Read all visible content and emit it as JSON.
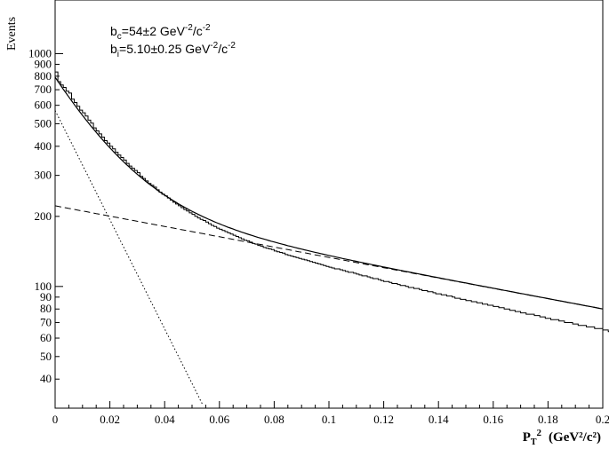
{
  "chart_data": {
    "type": "line",
    "ylabel": "Events",
    "xlabel_main": "P",
    "xlabel_sub": "T",
    "xlabel_sup": "2",
    "xlabel_units": "(GeV²/c²)",
    "ylog": true,
    "xlim": [
      0,
      0.2
    ],
    "ylim": [
      30,
      1700
    ],
    "x_ticks": [
      0,
      0.02,
      0.04,
      0.06,
      0.08,
      0.1,
      0.12,
      0.14,
      0.16,
      0.18,
      0.2
    ],
    "x_tick_labels": [
      "0",
      "0.02",
      "0.04",
      "0.06",
      "0.08",
      "0.1",
      "0.12",
      "0.14",
      "0.16",
      "0.18",
      "0.2"
    ],
    "y_ticks": [
      40,
      50,
      60,
      70,
      80,
      90,
      100,
      200,
      300,
      400,
      500,
      600,
      700,
      800,
      900,
      1000
    ],
    "y_tick_labels": [
      "40",
      "50",
      "60",
      "70",
      "80",
      "90",
      "100",
      "200",
      "300",
      "400",
      "500",
      "600",
      "700",
      "800",
      "900",
      "1000"
    ],
    "annotations": [
      {
        "prefix": "b",
        "sub": "c",
        "text": "=54±2 GeV",
        "sup1": "-2",
        "mid": "/c",
        "sup2": "-2"
      },
      {
        "prefix": "b",
        "sub": "i",
        "text": "=5.10±0.25  GeV",
        "sup1": "-2",
        "mid": "/c",
        "sup2": "-2"
      }
    ],
    "fit_components": {
      "coherent": {
        "amplitude": 570,
        "slope": 54,
        "style": "dotted"
      },
      "incoherent": {
        "amplitude": 222,
        "slope": 5.1,
        "style": "dashed"
      },
      "total": {
        "style": "solid"
      }
    },
    "histogram": {
      "bin_width": 0.001,
      "x_start": 0,
      "counts": [
        834,
        758,
        734,
        716,
        690,
        677,
        637,
        617,
        594,
        572,
        557,
        540,
        518,
        503,
        480,
        466,
        452,
        438,
        423,
        413,
        400,
        390,
        377,
        367,
        358,
        349,
        338,
        329,
        322,
        315,
        308,
        297,
        291,
        284,
        277,
        272,
        267,
        260,
        254,
        249,
        245,
        240,
        235,
        230,
        226,
        222,
        218,
        214,
        211,
        207,
        204,
        200,
        197,
        194,
        192,
        189,
        186,
        183,
        181,
        178,
        176,
        174,
        172,
        170,
        168,
        166,
        164,
        162,
        160,
        158,
        157,
        155,
        153,
        152,
        150,
        149,
        147,
        146,
        145,
        144,
        142,
        141,
        140,
        139,
        137,
        136,
        135,
        134,
        133,
        132,
        131,
        130,
        129,
        128,
        127,
        126,
        125,
        124,
        123,
        122,
        121,
        120,
        119,
        119,
        118,
        117,
        116,
        115,
        115,
        114,
        113,
        112,
        111,
        111,
        110,
        109,
        108,
        108,
        107,
        106,
        105,
        105,
        104,
        103,
        103,
        102,
        101,
        101,
        100,
        99,
        99,
        98,
        98,
        97,
        96,
        96,
        95,
        95,
        94,
        93,
        93,
        92,
        92,
        91,
        91,
        90,
        89,
        89,
        88,
        88,
        87,
        87,
        86,
        86,
        85,
        85,
        84,
        84,
        83,
        83,
        82,
        82,
        81,
        81,
        80,
        80,
        79,
        79,
        78,
        78,
        77,
        77,
        76,
        76,
        76,
        75,
        75,
        74,
        74,
        73,
        73,
        72,
        72,
        72,
        71,
        71,
        70,
        70,
        70,
        69,
        69,
        68,
        68,
        68,
        67,
        67,
        67,
        66,
        66,
        66,
        65,
        65,
        64,
        64,
        64,
        63,
        63,
        63,
        62,
        62,
        62,
        62,
        61,
        61,
        61,
        60,
        60,
        60,
        59,
        59,
        59,
        58,
        58,
        58,
        58,
        57,
        57,
        57,
        57,
        56
      ]
    }
  }
}
